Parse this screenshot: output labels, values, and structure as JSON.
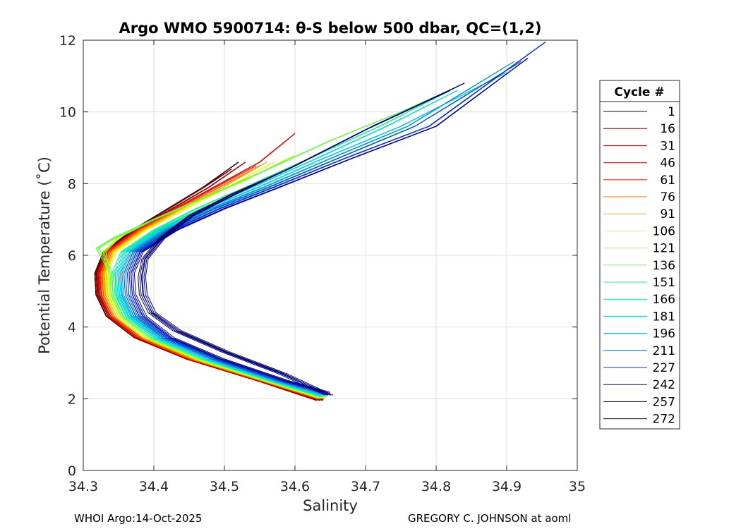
{
  "title": "Argo WMO 5900714: θ-S below 500 dbar,  QC=(1,2)",
  "footer": {
    "left": "WHOI Argo:14-Oct-2025",
    "right": "GREGORY C. JOHNSON at aoml"
  },
  "chart_data": {
    "type": "line",
    "title": "Argo WMO 5900714: θ-S below 500 dbar,  QC=(1,2)",
    "xlabel": "Salinity",
    "ylabel": "Potential Temperature (˚C)",
    "xlim": [
      34.3,
      35
    ],
    "ylim": [
      0,
      12
    ],
    "xticks": [
      "34.3",
      "34.4",
      "34.5",
      "34.6",
      "34.7",
      "34.8",
      "34.9",
      "35"
    ],
    "yticks": [
      "0",
      "2",
      "4",
      "6",
      "8",
      "10",
      "12"
    ],
    "grid": true,
    "legend": {
      "title": "Cycle #",
      "placement": "outside-right",
      "entries": [
        {
          "label": "1",
          "color": "#2a0000"
        },
        {
          "label": "16",
          "color": "#6a0000"
        },
        {
          "label": "31",
          "color": "#a00000"
        },
        {
          "label": "46",
          "color": "#d81010"
        },
        {
          "label": "61",
          "color": "#ff2a00"
        },
        {
          "label": "76",
          "color": "#ff6a00"
        },
        {
          "label": "91",
          "color": "#ffb000"
        },
        {
          "label": "106",
          "color": "#fff000"
        },
        {
          "label": "121",
          "color": "#b8ff10"
        },
        {
          "label": "136",
          "color": "#60ff40"
        },
        {
          "label": "151",
          "color": "#20f090"
        },
        {
          "label": "166",
          "color": "#00e0c0"
        },
        {
          "label": "181",
          "color": "#00c8ff"
        },
        {
          "label": "196",
          "color": "#0098d0"
        },
        {
          "label": "211",
          "color": "#0060c0"
        },
        {
          "label": "227",
          "color": "#0030e0"
        },
        {
          "label": "242",
          "color": "#0000a0"
        },
        {
          "label": "257",
          "color": "#000050"
        },
        {
          "label": "272",
          "color": "#000090"
        }
      ]
    },
    "series": [
      {
        "label": "1",
        "color": "#2a0000",
        "x": [
          34.635,
          34.55,
          34.45,
          34.375,
          34.335,
          34.32,
          34.318,
          34.33,
          34.37,
          34.42,
          34.47,
          34.52
        ],
        "y": [
          1.95,
          2.5,
          3.1,
          3.7,
          4.3,
          4.9,
          5.5,
          6.1,
          6.7,
          7.3,
          7.9,
          8.6
        ]
      },
      {
        "label": "16",
        "color": "#6a0000",
        "x": [
          34.635,
          34.55,
          34.45,
          34.376,
          34.336,
          34.321,
          34.319,
          34.331,
          34.371,
          34.421,
          34.471,
          34.51
        ],
        "y": [
          1.96,
          2.5,
          3.1,
          3.7,
          4.3,
          4.9,
          5.5,
          6.1,
          6.7,
          7.3,
          7.9,
          8.4
        ]
      },
      {
        "label": "31",
        "color": "#a00000",
        "x": [
          34.636,
          34.552,
          34.452,
          34.378,
          34.338,
          34.323,
          34.321,
          34.333,
          34.374,
          34.426,
          34.478,
          34.53
        ],
        "y": [
          1.97,
          2.5,
          3.1,
          3.7,
          4.3,
          4.9,
          5.5,
          6.1,
          6.7,
          7.3,
          7.9,
          8.6
        ]
      },
      {
        "label": "46",
        "color": "#d81010",
        "x": [
          34.636,
          34.553,
          34.453,
          34.379,
          34.339,
          34.324,
          34.322,
          34.334,
          34.376,
          34.43,
          34.485,
          34.55,
          34.6
        ],
        "y": [
          1.98,
          2.5,
          3.1,
          3.7,
          4.3,
          4.9,
          5.5,
          6.1,
          6.7,
          7.3,
          7.9,
          8.6,
          9.4
        ]
      },
      {
        "label": "61",
        "color": "#ff2a00",
        "x": [
          34.637,
          34.554,
          34.455,
          34.381,
          34.341,
          34.326,
          34.324,
          34.336,
          34.378,
          34.432,
          34.488,
          34.545
        ],
        "y": [
          1.99,
          2.5,
          3.1,
          3.7,
          4.3,
          4.9,
          5.5,
          6.1,
          6.7,
          7.3,
          7.9,
          8.5
        ]
      },
      {
        "label": "76",
        "color": "#ff6a00",
        "x": [
          34.637,
          34.556,
          34.457,
          34.384,
          34.344,
          34.329,
          34.327,
          34.339,
          34.381,
          34.436,
          34.493,
          34.55
        ],
        "y": [
          2.0,
          2.5,
          3.1,
          3.7,
          4.3,
          4.9,
          5.5,
          6.1,
          6.7,
          7.3,
          7.9,
          8.5
        ]
      },
      {
        "label": "91",
        "color": "#ffb000",
        "x": [
          34.638,
          34.558,
          34.46,
          34.387,
          34.347,
          34.332,
          34.33,
          34.342,
          34.384,
          34.44,
          34.498,
          34.56
        ],
        "y": [
          2.01,
          2.5,
          3.1,
          3.7,
          4.3,
          4.9,
          5.5,
          6.1,
          6.7,
          7.3,
          7.9,
          8.6
        ]
      },
      {
        "label": "106",
        "color": "#fff000",
        "x": [
          34.638,
          34.56,
          34.463,
          34.39,
          34.35,
          34.335,
          34.333,
          34.345,
          34.388,
          34.445,
          34.505,
          34.57
        ],
        "y": [
          2.02,
          2.5,
          3.1,
          3.7,
          4.3,
          4.9,
          5.5,
          6.1,
          6.7,
          7.3,
          7.9,
          8.6
        ]
      },
      {
        "label": "121",
        "color": "#b8ff10",
        "x": [
          34.639,
          34.562,
          34.466,
          34.393,
          34.353,
          34.338,
          34.336,
          34.33,
          34.35,
          34.4,
          34.46,
          34.53,
          34.6
        ],
        "y": [
          2.03,
          2.5,
          3.1,
          3.7,
          4.3,
          4.9,
          5.5,
          6.1,
          6.5,
          7.0,
          7.5,
          8.1,
          8.8
        ]
      },
      {
        "label": "136",
        "color": "#60ff40",
        "x": [
          34.64,
          34.565,
          34.47,
          34.397,
          34.357,
          34.342,
          34.34,
          34.32,
          34.345,
          34.4,
          34.47,
          34.55,
          34.65,
          34.75,
          34.83
        ],
        "y": [
          2.05,
          2.5,
          3.1,
          3.7,
          4.3,
          4.9,
          5.5,
          6.2,
          6.5,
          7.0,
          7.6,
          8.3,
          9.2,
          10.0,
          10.7
        ]
      },
      {
        "label": "151",
        "color": "#20f090",
        "x": [
          34.64,
          34.567,
          34.473,
          34.4,
          34.36,
          34.345,
          34.343,
          34.355,
          34.4,
          34.46,
          34.53,
          34.62,
          34.72,
          34.82
        ],
        "y": [
          2.06,
          2.5,
          3.1,
          3.7,
          4.3,
          4.9,
          5.5,
          6.1,
          6.7,
          7.3,
          7.9,
          8.7,
          9.6,
          10.6
        ]
      },
      {
        "label": "166",
        "color": "#00e0c0",
        "x": [
          34.641,
          34.57,
          34.477,
          34.404,
          34.364,
          34.349,
          34.347,
          34.36,
          34.405,
          34.467,
          34.54,
          34.63,
          34.73,
          34.83
        ],
        "y": [
          2.08,
          2.5,
          3.1,
          3.7,
          4.3,
          4.9,
          5.5,
          6.1,
          6.7,
          7.3,
          7.9,
          8.7,
          9.6,
          10.6
        ]
      },
      {
        "label": "181",
        "color": "#00c8ff",
        "x": [
          34.642,
          34.573,
          34.48,
          34.408,
          34.368,
          34.353,
          34.351,
          34.364,
          34.41,
          34.473,
          34.548,
          34.64,
          34.75,
          34.9
        ],
        "y": [
          2.1,
          2.5,
          3.1,
          3.7,
          4.3,
          4.9,
          5.5,
          6.1,
          6.7,
          7.3,
          7.9,
          8.7,
          9.6,
          11.1
        ]
      },
      {
        "label": "196",
        "color": "#0098d0",
        "x": [
          34.643,
          34.576,
          34.484,
          34.412,
          34.372,
          34.357,
          34.355,
          34.368,
          34.415,
          34.48,
          34.556,
          34.65,
          34.76,
          34.91
        ],
        "y": [
          2.12,
          2.5,
          3.1,
          3.7,
          4.3,
          4.9,
          5.5,
          6.1,
          6.7,
          7.3,
          7.9,
          8.7,
          9.6,
          11.4
        ]
      },
      {
        "label": "211",
        "color": "#0060c0",
        "x": [
          34.644,
          34.58,
          34.488,
          34.416,
          34.377,
          34.362,
          34.36,
          34.373,
          34.42,
          34.486,
          34.563,
          34.66,
          34.77,
          34.92
        ],
        "y": [
          2.14,
          2.5,
          3.1,
          3.7,
          4.3,
          4.9,
          5.5,
          6.1,
          6.7,
          7.3,
          7.9,
          8.7,
          9.6,
          11.4
        ]
      },
      {
        "label": "227",
        "color": "#0030e0",
        "x": [
          34.645,
          34.584,
          34.493,
          34.421,
          34.382,
          34.367,
          34.365,
          34.378,
          34.426,
          34.493,
          34.57,
          34.67,
          34.79,
          34.955
        ],
        "y": [
          2.16,
          2.5,
          3.1,
          3.7,
          4.3,
          4.9,
          5.5,
          6.1,
          6.7,
          7.3,
          7.9,
          8.7,
          9.6,
          11.95
        ]
      },
      {
        "label": "242",
        "color": "#0000a0",
        "x": [
          34.646,
          34.588,
          34.498,
          34.426,
          34.387,
          34.372,
          34.37,
          34.383,
          34.432,
          34.5,
          34.578,
          34.68,
          34.8,
          34.93
        ],
        "y": [
          2.18,
          2.5,
          3.1,
          3.7,
          4.3,
          4.9,
          5.5,
          6.1,
          6.7,
          7.3,
          7.9,
          8.7,
          9.6,
          11.5
        ]
      },
      {
        "label": "257",
        "color": "#000050",
        "x": [
          34.647,
          34.58,
          34.5,
          34.43,
          34.395,
          34.382,
          34.38,
          34.385,
          34.41,
          34.45,
          34.51,
          34.59,
          34.7,
          34.82
        ],
        "y": [
          2.1,
          2.7,
          3.3,
          3.9,
          4.4,
          4.9,
          5.4,
          5.9,
          6.5,
          7.1,
          7.7,
          8.4,
          9.5,
          10.6
        ]
      },
      {
        "label": "272",
        "color": "#000090",
        "x": [
          34.65,
          34.585,
          34.505,
          34.436,
          34.4,
          34.388,
          34.386,
          34.39,
          34.415,
          34.455,
          34.515,
          34.6,
          34.71,
          34.84
        ],
        "y": [
          2.1,
          2.7,
          3.3,
          3.9,
          4.4,
          4.9,
          5.4,
          5.9,
          6.5,
          7.1,
          7.7,
          8.5,
          9.6,
          10.8
        ]
      }
    ]
  }
}
